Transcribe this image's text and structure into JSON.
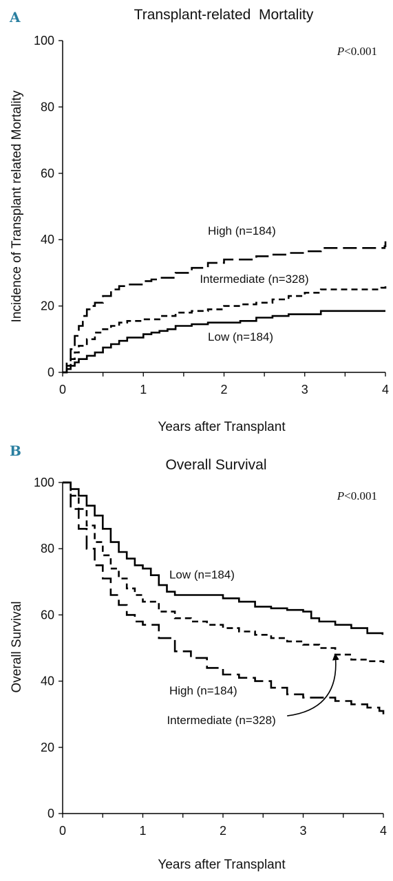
{
  "chart_data": [
    {
      "panel": "A",
      "type": "line",
      "step": true,
      "title": "Transplant-related  Mortality",
      "xlabel": "Years after Transplant",
      "ylabel": "Incidence of Transplant related Mortality",
      "xlim": [
        0,
        4
      ],
      "ylim": [
        0,
        100
      ],
      "xticks": [
        "0",
        "1",
        "2",
        "3",
        "4"
      ],
      "yticks": [
        "0",
        "20",
        "40",
        "60",
        "80",
        "100"
      ],
      "grid": false,
      "pvalue": {
        "italic": "P",
        "rest": "<0.001"
      },
      "series": [
        {
          "name": "High (n=184)",
          "dash": "long-dash",
          "x": [
            0,
            0.05,
            0.1,
            0.15,
            0.2,
            0.25,
            0.3,
            0.35,
            0.4,
            0.5,
            0.6,
            0.7,
            0.8,
            1.0,
            1.1,
            1.2,
            1.4,
            1.6,
            1.8,
            2.0,
            2.4,
            2.6,
            2.8,
            3.0,
            3.2,
            3.4,
            3.6,
            3.8,
            3.99,
            4.0
          ],
          "y": [
            0,
            3,
            7,
            11,
            14,
            17,
            19,
            20,
            21,
            23,
            25,
            26,
            26.5,
            27.5,
            28,
            28.5,
            30,
            31.5,
            33,
            34,
            35,
            35.5,
            36,
            36.5,
            37.5,
            37.5,
            37.5,
            37.5,
            38,
            39.5
          ]
        },
        {
          "name": "Intermediate (n=328)",
          "dash": "short-dash",
          "x": [
            0,
            0.05,
            0.1,
            0.15,
            0.2,
            0.3,
            0.4,
            0.5,
            0.6,
            0.7,
            0.8,
            1.0,
            1.2,
            1.4,
            1.6,
            1.8,
            2.0,
            2.2,
            2.4,
            2.6,
            2.8,
            3.0,
            3.2,
            3.4,
            3.6,
            3.8,
            3.95,
            4.0
          ],
          "y": [
            0,
            2,
            4,
            6,
            8,
            10,
            12,
            13,
            14,
            15,
            15.5,
            16,
            17,
            18,
            18.5,
            19,
            20,
            20.5,
            21,
            22,
            23,
            24,
            25,
            25,
            25,
            25,
            25.5,
            26
          ]
        },
        {
          "name": "Low (n=184)",
          "dash": "solid",
          "x": [
            0,
            0.05,
            0.1,
            0.15,
            0.2,
            0.3,
            0.4,
            0.5,
            0.6,
            0.7,
            0.8,
            1.0,
            1.1,
            1.2,
            1.3,
            1.4,
            1.6,
            1.8,
            2.0,
            2.2,
            2.4,
            2.6,
            2.8,
            3.0,
            3.2,
            3.4,
            3.6,
            3.8,
            4.0
          ],
          "y": [
            0,
            1,
            2,
            3,
            4,
            5,
            6,
            7.5,
            8.5,
            9.5,
            10.5,
            11.5,
            12,
            12.5,
            13,
            14,
            14.5,
            15,
            15,
            15.5,
            16.5,
            17,
            17.5,
            17.5,
            18.5,
            18.5,
            18.5,
            18.5,
            18.5
          ]
        }
      ],
      "annotations": [
        {
          "text": "High (n=184)",
          "x": 1.8,
          "y": 41.5
        },
        {
          "text": "Intermediate (n=328)",
          "x": 1.7,
          "y": 27
        },
        {
          "text": "Low (n=184)",
          "x": 1.8,
          "y": 9.5
        }
      ]
    },
    {
      "panel": "B",
      "type": "line",
      "step": true,
      "title": "Overall Survival",
      "xlabel": "Years after Transplant",
      "ylabel": "Overall Survival",
      "xlim": [
        0,
        4
      ],
      "ylim": [
        0,
        100
      ],
      "xticks": [
        "0",
        "1",
        "2",
        "3",
        "4"
      ],
      "yticks": [
        "0",
        "20",
        "40",
        "60",
        "80",
        "100"
      ],
      "grid": false,
      "pvalue": {
        "italic": "P",
        "rest": "<0.001"
      },
      "series": [
        {
          "name": "Low (n=184)",
          "dash": "solid",
          "x": [
            0,
            0.1,
            0.2,
            0.3,
            0.4,
            0.5,
            0.6,
            0.7,
            0.8,
            0.9,
            1.0,
            1.1,
            1.2,
            1.3,
            1.4,
            1.6,
            1.8,
            2.0,
            2.2,
            2.4,
            2.6,
            2.8,
            3.0,
            3.1,
            3.2,
            3.4,
            3.6,
            3.8,
            3.99
          ],
          "y": [
            100,
            98,
            96,
            93,
            90,
            86,
            82,
            79,
            77,
            75,
            74,
            72,
            69,
            67,
            66,
            66,
            66,
            65,
            64,
            62.5,
            62,
            61.5,
            61,
            59,
            58,
            57,
            56,
            54.5,
            54
          ]
        },
        {
          "name": "Intermediate (n=328)",
          "dash": "short-dash",
          "x": [
            0,
            0.1,
            0.2,
            0.3,
            0.4,
            0.5,
            0.6,
            0.7,
            0.8,
            0.9,
            1.0,
            1.2,
            1.4,
            1.6,
            1.8,
            2.0,
            2.2,
            2.4,
            2.6,
            2.8,
            3.0,
            3.2,
            3.4,
            3.6,
            3.8,
            4.0
          ],
          "y": [
            100,
            96,
            92,
            87,
            82,
            78,
            74,
            71,
            68,
            66,
            64,
            61,
            59,
            58,
            57,
            56,
            55,
            54,
            53,
            52,
            51,
            50,
            48,
            46.5,
            46,
            45.5
          ]
        },
        {
          "name": "High (n=184)",
          "dash": "long-dash",
          "x": [
            0,
            0.1,
            0.2,
            0.3,
            0.4,
            0.5,
            0.6,
            0.7,
            0.8,
            0.9,
            1.0,
            1.2,
            1.4,
            1.6,
            1.8,
            2.0,
            2.2,
            2.4,
            2.6,
            2.8,
            3.0,
            3.2,
            3.4,
            3.6,
            3.8,
            3.95,
            4.0
          ],
          "y": [
            100,
            92,
            86,
            80,
            75,
            71,
            66,
            63,
            60,
            58,
            57,
            53,
            49,
            47,
            44,
            42,
            41,
            40,
            38,
            36,
            35,
            35,
            34,
            33,
            32,
            31,
            30
          ]
        }
      ],
      "annotations": [
        {
          "text": "Low (n=184)",
          "x": 1.33,
          "y": 71
        },
        {
          "text": "High (n=184)",
          "x": 1.33,
          "y": 36
        },
        {
          "text": "Intermediate (n=328)",
          "x": 1.3,
          "y": 27
        }
      ],
      "arrow": {
        "from": [
          2.8,
          29.5
        ],
        "to": [
          3.4,
          48
        ]
      }
    }
  ]
}
